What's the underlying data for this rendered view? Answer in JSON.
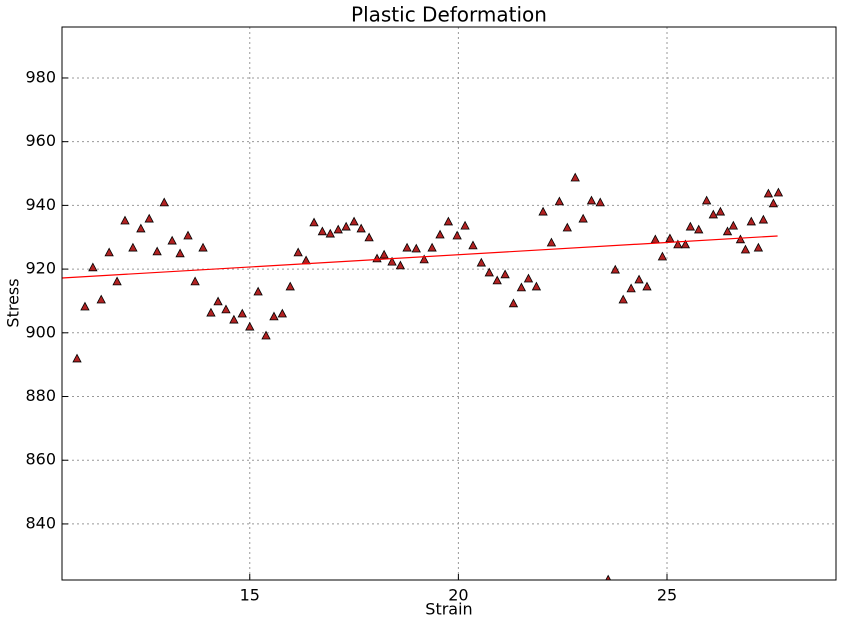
{
  "chart_data": {
    "type": "scatter",
    "title": "Plastic Deformation",
    "x_label": "Strain",
    "y_label": "Stress",
    "x": [
      10.86,
      11.05,
      11.24,
      11.44,
      11.63,
      11.82,
      12.01,
      12.2,
      12.39,
      12.59,
      12.78,
      12.95,
      13.14,
      13.33,
      13.52,
      13.69,
      13.88,
      14.07,
      14.24,
      14.43,
      14.62,
      14.82,
      15.0,
      15.2,
      15.39,
      15.58,
      15.78,
      15.97,
      16.16,
      16.35,
      16.54,
      16.74,
      16.93,
      17.12,
      17.31,
      17.5,
      17.67,
      17.86,
      18.05,
      18.22,
      18.41,
      18.61,
      18.77,
      18.99,
      19.18,
      19.37,
      19.56,
      19.76,
      19.97,
      20.16,
      20.35,
      20.55,
      20.74,
      20.93,
      21.12,
      21.32,
      21.51,
      21.68,
      21.87,
      22.03,
      22.23,
      22.42,
      22.61,
      22.8,
      22.99,
      23.19,
      23.4,
      23.59,
      23.76,
      23.95,
      24.14,
      24.33,
      24.52,
      24.72,
      24.89,
      25.07,
      25.26,
      25.44,
      25.56,
      25.76,
      25.95,
      26.11,
      26.28,
      26.45,
      26.59,
      26.76,
      26.88,
      27.02,
      27.19,
      27.31,
      27.43,
      27.55,
      27.67
    ],
    "values": [
      891.8,
      908.1,
      920.4,
      910.3,
      925.1,
      916,
      935.1,
      926.6,
      932.6,
      935.7,
      925.4,
      940.8,
      928.8,
      924.8,
      930.4,
      916,
      926.6,
      906.2,
      909.7,
      907.2,
      904,
      905.9,
      901.8,
      912.8,
      899,
      905,
      905.9,
      914.4,
      925.1,
      922.6,
      934.5,
      931.7,
      931,
      932.3,
      933.2,
      934.8,
      932.6,
      929.8,
      923.2,
      924.4,
      922.2,
      921,
      926.6,
      926.3,
      922.9,
      926.6,
      930.7,
      934.8,
      930.4,
      933.5,
      927.3,
      921.9,
      918.8,
      916.3,
      918.2,
      909.1,
      914.1,
      916.9,
      914.4,
      937.9,
      928.2,
      941.1,
      932.9,
      948.6,
      935.7,
      941.4,
      940.8,
      822.4,
      919.7,
      910.3,
      913.8,
      916.6,
      914.4,
      929.2,
      923.8,
      929.5,
      927.6,
      927.6,
      933.2,
      932.3,
      941.4,
      937,
      937.9,
      931.7,
      933.5,
      929.2,
      926,
      934.8,
      926.6,
      935.4,
      943.6,
      940.5,
      943.9
    ],
    "color": "#b22222",
    "fit": {
      "x": [
        10.5,
        27.65
      ],
      "values": [
        917.2,
        930.4
      ],
      "color": "#ff0000"
    },
    "xlim": [
      10.5,
      29.05
    ],
    "ylim": [
      822.4,
      996
    ],
    "xticks": [
      15,
      20,
      25
    ],
    "yticks": [
      840,
      860,
      880,
      900,
      920,
      940,
      960,
      980
    ],
    "grid": true
  }
}
